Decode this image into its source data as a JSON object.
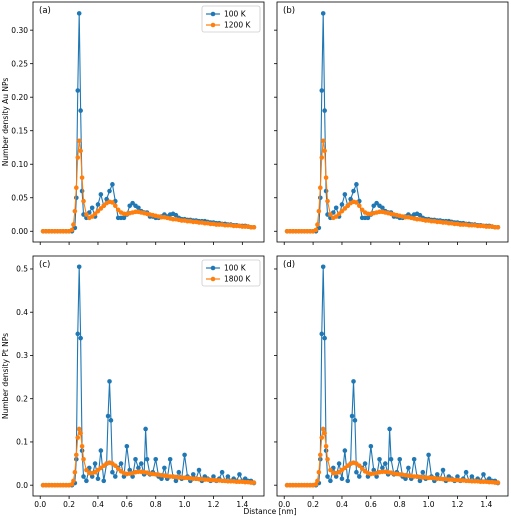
{
  "chart_data": [
    {
      "panel": "(a)",
      "type": "line",
      "ylabel": "Number density Au NPs",
      "xlabel": "",
      "xlim": [
        -0.05,
        1.55
      ],
      "ylim": [
        -0.016,
        0.342
      ],
      "xticks": [],
      "yticks": [
        0.0,
        0.05,
        0.1,
        0.15,
        0.2,
        0.25,
        0.3
      ],
      "ytick_labels": [
        "0.00",
        "0.05",
        "0.10",
        "0.15",
        "0.20",
        "0.25",
        "0.30"
      ],
      "legend": {
        "position": "top-right",
        "entries": [
          "100 K",
          "1200 K"
        ]
      },
      "series": [
        {
          "name": "100 K",
          "color": "#1f77b4",
          "x": [
            0.02,
            0.04,
            0.06,
            0.08,
            0.1,
            0.12,
            0.14,
            0.16,
            0.18,
            0.2,
            0.22,
            0.24,
            0.25,
            0.26,
            0.27,
            0.28,
            0.29,
            0.3,
            0.32,
            0.34,
            0.36,
            0.38,
            0.4,
            0.42,
            0.44,
            0.46,
            0.48,
            0.5,
            0.52,
            0.54,
            0.56,
            0.58,
            0.6,
            0.62,
            0.64,
            0.66,
            0.68,
            0.7,
            0.72,
            0.74,
            0.76,
            0.78,
            0.8,
            0.82,
            0.84,
            0.86,
            0.88,
            0.9,
            0.92,
            0.94,
            0.96,
            0.98,
            1.0,
            1.02,
            1.04,
            1.06,
            1.08,
            1.1,
            1.12,
            1.14,
            1.16,
            1.18,
            1.2,
            1.22,
            1.24,
            1.26,
            1.28,
            1.3,
            1.32,
            1.34,
            1.36,
            1.38,
            1.4,
            1.42,
            1.44,
            1.46,
            1.48
          ],
          "y": [
            0,
            0,
            0,
            0,
            0,
            0,
            0,
            0,
            0,
            0,
            0,
            0.005,
            0.05,
            0.21,
            0.325,
            0.18,
            0.06,
            0.025,
            0.02,
            0.028,
            0.035,
            0.022,
            0.04,
            0.055,
            0.038,
            0.048,
            0.06,
            0.07,
            0.045,
            0.02,
            0.02,
            0.02,
            0.025,
            0.038,
            0.042,
            0.038,
            0.035,
            0.03,
            0.028,
            0.028,
            0.022,
            0.022,
            0.02,
            0.02,
            0.022,
            0.025,
            0.022,
            0.025,
            0.026,
            0.024,
            0.02,
            0.018,
            0.018,
            0.017,
            0.017,
            0.016,
            0.016,
            0.015,
            0.015,
            0.015,
            0.014,
            0.013,
            0.013,
            0.012,
            0.012,
            0.011,
            0.011,
            0.01,
            0.01,
            0.009,
            0.009,
            0.008,
            0.008,
            0.008,
            0.007,
            0.006,
            0.006
          ]
        },
        {
          "name": "1200 K",
          "color": "#ff7f0e",
          "x": [
            0.02,
            0.04,
            0.06,
            0.08,
            0.1,
            0.12,
            0.14,
            0.16,
            0.18,
            0.2,
            0.22,
            0.23,
            0.24,
            0.25,
            0.26,
            0.27,
            0.28,
            0.29,
            0.3,
            0.32,
            0.34,
            0.36,
            0.38,
            0.4,
            0.42,
            0.44,
            0.46,
            0.48,
            0.5,
            0.52,
            0.54,
            0.56,
            0.58,
            0.6,
            0.62,
            0.64,
            0.66,
            0.68,
            0.7,
            0.72,
            0.74,
            0.76,
            0.78,
            0.8,
            0.82,
            0.84,
            0.86,
            0.88,
            0.9,
            0.92,
            0.94,
            0.96,
            0.98,
            1.0,
            1.02,
            1.04,
            1.06,
            1.08,
            1.1,
            1.12,
            1.14,
            1.16,
            1.18,
            1.2,
            1.22,
            1.24,
            1.26,
            1.28,
            1.3,
            1.32,
            1.34,
            1.36,
            1.38,
            1.4,
            1.42,
            1.44,
            1.46,
            1.48
          ],
          "y": [
            0,
            0,
            0,
            0,
            0,
            0,
            0,
            0,
            0,
            0,
            0.002,
            0.01,
            0.03,
            0.065,
            0.11,
            0.135,
            0.12,
            0.08,
            0.045,
            0.025,
            0.02,
            0.022,
            0.026,
            0.03,
            0.034,
            0.038,
            0.042,
            0.044,
            0.043,
            0.038,
            0.032,
            0.028,
            0.026,
            0.026,
            0.027,
            0.028,
            0.029,
            0.029,
            0.028,
            0.027,
            0.026,
            0.025,
            0.024,
            0.023,
            0.022,
            0.021,
            0.021,
            0.02,
            0.019,
            0.018,
            0.018,
            0.017,
            0.016,
            0.016,
            0.015,
            0.015,
            0.014,
            0.014,
            0.013,
            0.013,
            0.012,
            0.012,
            0.011,
            0.011,
            0.01,
            0.01,
            0.01,
            0.009,
            0.009,
            0.009,
            0.008,
            0.008,
            0.008,
            0.007,
            0.007,
            0.007,
            0.006,
            0.006
          ]
        }
      ]
    },
    {
      "panel": "(b)",
      "type": "line",
      "ylabel": "",
      "xlabel": "",
      "xlim": [
        -0.05,
        1.55
      ],
      "ylim": [
        -0.016,
        0.342
      ],
      "xticks": [],
      "yticks": [],
      "legend": null,
      "series_ref": "same as (a)"
    },
    {
      "panel": "(c)",
      "type": "line",
      "ylabel": "Number density Pt NPs",
      "xlabel": "",
      "xlim": [
        -0.05,
        1.55
      ],
      "ylim": [
        -0.025,
        0.53
      ],
      "xticks": [
        0.0,
        0.2,
        0.4,
        0.6,
        0.8,
        1.0,
        1.2,
        1.4
      ],
      "xtick_labels": [
        "0.0",
        "0.2",
        "0.4",
        "0.6",
        "0.8",
        "1.0",
        "1.2",
        "1.4"
      ],
      "yticks": [
        0.0,
        0.1,
        0.2,
        0.3,
        0.4,
        0.5
      ],
      "ytick_labels": [
        "0.0",
        "0.1",
        "0.2",
        "0.3",
        "0.4",
        "0.5"
      ],
      "legend": {
        "position": "top-right",
        "entries": [
          "100 K",
          "1800 K"
        ]
      },
      "series": [
        {
          "name": "100 K",
          "color": "#1f77b4",
          "x": [
            0.02,
            0.04,
            0.06,
            0.08,
            0.1,
            0.12,
            0.14,
            0.16,
            0.18,
            0.2,
            0.22,
            0.24,
            0.25,
            0.26,
            0.27,
            0.28,
            0.29,
            0.3,
            0.32,
            0.34,
            0.36,
            0.38,
            0.4,
            0.42,
            0.44,
            0.46,
            0.47,
            0.48,
            0.49,
            0.5,
            0.52,
            0.54,
            0.56,
            0.58,
            0.6,
            0.62,
            0.64,
            0.66,
            0.68,
            0.7,
            0.72,
            0.73,
            0.74,
            0.76,
            0.78,
            0.8,
            0.82,
            0.84,
            0.86,
            0.88,
            0.9,
            0.92,
            0.94,
            0.96,
            0.98,
            1.0,
            1.02,
            1.04,
            1.06,
            1.08,
            1.1,
            1.12,
            1.14,
            1.16,
            1.18,
            1.2,
            1.22,
            1.24,
            1.26,
            1.28,
            1.3,
            1.32,
            1.34,
            1.36,
            1.38,
            1.4,
            1.42,
            1.44,
            1.46,
            1.48
          ],
          "y": [
            0,
            0,
            0,
            0,
            0,
            0,
            0,
            0,
            0,
            0,
            0,
            0.005,
            0.06,
            0.35,
            0.505,
            0.34,
            0.08,
            0.02,
            0.01,
            0.04,
            0.02,
            0.05,
            0.015,
            0.08,
            0.01,
            0.05,
            0.16,
            0.24,
            0.15,
            0.03,
            0.02,
            0.04,
            0.05,
            0.02,
            0.09,
            0.035,
            0.02,
            0.06,
            0.04,
            0.05,
            0.025,
            0.13,
            0.06,
            0.025,
            0.03,
            0.06,
            0.02,
            0.015,
            0.04,
            0.015,
            0.06,
            0.02,
            0.01,
            0.03,
            0.015,
            0.07,
            0.02,
            0.01,
            0.025,
            0.015,
            0.035,
            0.01,
            0.02,
            0.015,
            0.01,
            0.02,
            0.01,
            0.015,
            0.03,
            0.01,
            0.02,
            0.01,
            0.015,
            0.01,
            0.025,
            0.01,
            0.015,
            0.01,
            0.01,
            0.005
          ]
        },
        {
          "name": "1800 K",
          "color": "#ff7f0e",
          "x": [
            0.02,
            0.04,
            0.06,
            0.08,
            0.1,
            0.12,
            0.14,
            0.16,
            0.18,
            0.2,
            0.22,
            0.23,
            0.24,
            0.25,
            0.26,
            0.27,
            0.28,
            0.29,
            0.3,
            0.32,
            0.34,
            0.36,
            0.38,
            0.4,
            0.42,
            0.44,
            0.46,
            0.48,
            0.5,
            0.52,
            0.54,
            0.56,
            0.58,
            0.6,
            0.62,
            0.64,
            0.66,
            0.68,
            0.7,
            0.72,
            0.74,
            0.76,
            0.78,
            0.8,
            0.82,
            0.84,
            0.86,
            0.88,
            0.9,
            0.92,
            0.94,
            0.96,
            0.98,
            1.0,
            1.02,
            1.04,
            1.06,
            1.08,
            1.1,
            1.12,
            1.14,
            1.16,
            1.18,
            1.2,
            1.22,
            1.24,
            1.26,
            1.28,
            1.3,
            1.32,
            1.34,
            1.36,
            1.38,
            1.4,
            1.42,
            1.44,
            1.46,
            1.48
          ],
          "y": [
            0,
            0,
            0,
            0,
            0,
            0,
            0,
            0,
            0,
            0,
            0.002,
            0.01,
            0.03,
            0.07,
            0.11,
            0.13,
            0.12,
            0.09,
            0.06,
            0.035,
            0.028,
            0.028,
            0.03,
            0.035,
            0.04,
            0.045,
            0.05,
            0.052,
            0.05,
            0.045,
            0.038,
            0.032,
            0.028,
            0.026,
            0.027,
            0.028,
            0.03,
            0.031,
            0.031,
            0.03,
            0.029,
            0.027,
            0.026,
            0.025,
            0.024,
            0.023,
            0.022,
            0.021,
            0.02,
            0.02,
            0.019,
            0.018,
            0.018,
            0.017,
            0.017,
            0.016,
            0.015,
            0.015,
            0.014,
            0.014,
            0.013,
            0.013,
            0.012,
            0.012,
            0.011,
            0.011,
            0.01,
            0.01,
            0.009,
            0.009,
            0.009,
            0.008,
            0.008,
            0.008,
            0.007,
            0.007,
            0.006,
            0.006
          ]
        }
      ]
    },
    {
      "panel": "(d)",
      "type": "line",
      "ylabel": "",
      "xlabel": "",
      "xlim": [
        -0.05,
        1.55
      ],
      "ylim": [
        -0.025,
        0.53
      ],
      "xticks": [
        0.0,
        0.2,
        0.4,
        0.6,
        0.8,
        1.0,
        1.2,
        1.4
      ],
      "xtick_labels": [
        "0.0",
        "0.2",
        "0.4",
        "0.6",
        "0.8",
        "1.0",
        "1.2",
        "1.4"
      ],
      "yticks": [],
      "legend": null,
      "series_ref": "same as (c)"
    }
  ],
  "figure": {
    "shared_xlabel": "Distance [nm]"
  }
}
